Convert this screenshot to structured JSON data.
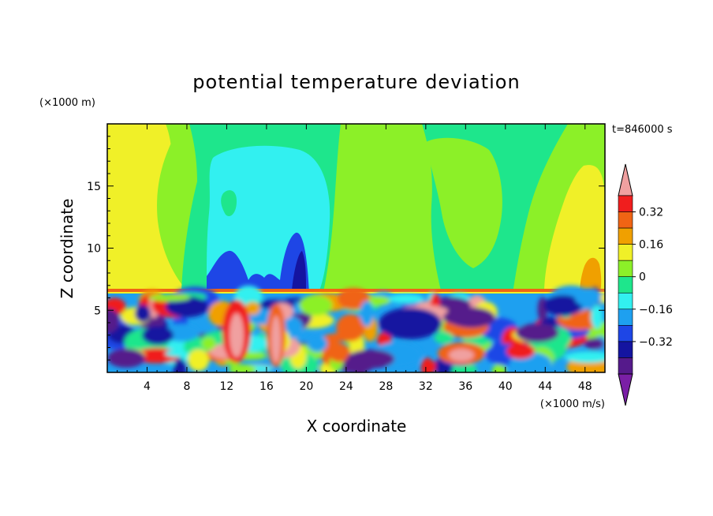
{
  "chart_data": {
    "type": "heatmap",
    "title": "potential temperature deviation",
    "xlabel": "X coordinate",
    "ylabel": "Z coordinate",
    "x_unit": "(×1000 m/s)",
    "y_unit": "(×1000 m)",
    "time_label": "t=846000 s",
    "xlim": [
      0,
      50
    ],
    "ylim": [
      0,
      20
    ],
    "x_ticks": [
      4,
      8,
      12,
      16,
      20,
      24,
      28,
      32,
      36,
      40,
      44,
      48
    ],
    "y_ticks": [
      5,
      10,
      15
    ],
    "inversion_height": 6.5,
    "colorbar": {
      "levels": [
        -0.48,
        -0.4,
        -0.32,
        -0.24,
        -0.16,
        -0.08,
        0,
        0.08,
        0.16,
        0.24,
        0.32,
        0.4
      ],
      "tick_values": [
        0.32,
        0.16,
        0,
        -0.16,
        -0.32
      ],
      "tick_labels": [
        "0.32",
        "0.16",
        "0",
        "−0.16",
        "−0.32"
      ],
      "colors": [
        "#7a1fa6",
        "#551a8b",
        "#1414a0",
        "#1e46e6",
        "#1ea0f0",
        "#32f0f0",
        "#1ee68c",
        "#8cf028",
        "#f0f028",
        "#f0a000",
        "#f06414",
        "#f01e1e",
        "#f0a0a0"
      ]
    },
    "upper_layer": [
      {
        "x": [
          0,
          8
        ],
        "z": [
          7,
          20
        ],
        "level": "yellow"
      },
      {
        "x": [
          6,
          22
        ],
        "z": [
          10,
          20
        ],
        "level": "light-green"
      },
      {
        "x": [
          12,
          20
        ],
        "z": [
          7,
          16
        ],
        "level": "cyan"
      },
      {
        "x": [
          10,
          19
        ],
        "z": [
          6.5,
          11
        ],
        "level": "blue"
      },
      {
        "x": [
          22,
          30
        ],
        "z": [
          7,
          20
        ],
        "level": "yellow-green"
      },
      {
        "x": [
          28,
          44
        ],
        "z": [
          10,
          20
        ],
        "level": "green"
      },
      {
        "x": [
          44,
          50
        ],
        "z": [
          7,
          20
        ],
        "level": "yellow"
      }
    ]
  }
}
